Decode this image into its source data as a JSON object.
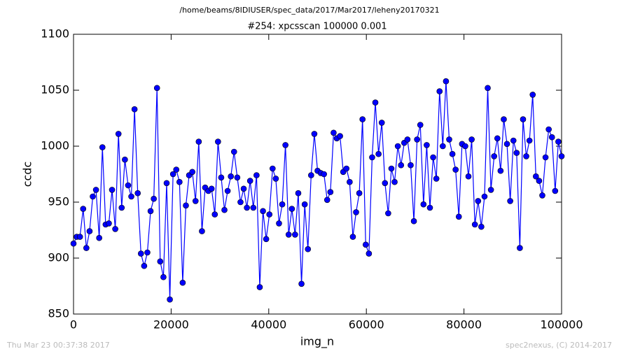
{
  "chart_data": {
    "type": "line",
    "suptitle": "/home/beams/8IDIUSER/spec_data/2017/Mar2017/leheny20170321",
    "title": "#254: xpcsscan 100000 0.001",
    "x_label": "img_n",
    "y_label": "ccdc",
    "footer_left": "Thu Mar 23 00:37:38 2017",
    "footer_right": "spec2nexus, (C) 2014-2017",
    "xlim": [
      0,
      100000
    ],
    "xticks": [
      0,
      20000,
      40000,
      60000,
      80000,
      100000
    ],
    "ylim": [
      850,
      1100
    ],
    "yticks": [
      850,
      900,
      950,
      1000,
      1050,
      1100
    ],
    "grid": false,
    "x": [
      0,
      658,
      1316,
      1974,
      2632,
      3289,
      3947,
      4605,
      5263,
      5921,
      6579,
      7237,
      7895,
      8553,
      9211,
      9868,
      10526,
      11184,
      11842,
      12500,
      13158,
      13816,
      14474,
      15132,
      15789,
      16447,
      17105,
      17763,
      18421,
      19079,
      19737,
      20395,
      21053,
      21711,
      22368,
      23026,
      23684,
      24342,
      25000,
      25658,
      26316,
      26974,
      27632,
      28289,
      28947,
      29605,
      30263,
      30921,
      31579,
      32237,
      32895,
      33553,
      34211,
      34868,
      35526,
      36184,
      36842,
      37500,
      38158,
      38816,
      39474,
      40132,
      40789,
      41447,
      42105,
      42763,
      43421,
      44079,
      44737,
      45395,
      46053,
      46711,
      47368,
      48026,
      48684,
      49342,
      50000,
      50658,
      51316,
      51974,
      52632,
      53289,
      53947,
      54605,
      55263,
      55921,
      56579,
      57237,
      57895,
      58553,
      59211,
      59868,
      60526,
      61184,
      61842,
      62500,
      63158,
      63816,
      64474,
      65132,
      65789,
      66447,
      67105,
      67763,
      68421,
      69079,
      69737,
      70395,
      71053,
      71711,
      72368,
      73026,
      73684,
      74342,
      75000,
      75658,
      76316,
      76974,
      77632,
      78289,
      78947,
      79605,
      80263,
      80921,
      81579,
      82237,
      82895,
      83553,
      84211,
      84868,
      85526,
      86184,
      86842,
      87500,
      88158,
      88816,
      89474,
      90132,
      90789,
      91447,
      92105,
      92763,
      93421,
      94079,
      94737,
      95395,
      96053,
      96711,
      97368,
      98026,
      98684,
      99342,
      100000
    ],
    "series": [
      {
        "color": "#0000ff",
        "values": [
          913,
          919,
          919,
          944,
          909,
          924,
          955,
          961,
          918,
          999,
          930,
          931,
          961,
          926,
          1011,
          945,
          988,
          965,
          955,
          1033,
          958,
          904,
          893,
          905,
          942,
          953,
          1052,
          897,
          883,
          967,
          863,
          975,
          979,
          968,
          878,
          947,
          974,
          977,
          951,
          1004,
          924,
          963,
          960,
          962,
          939,
          1004,
          972,
          943,
          960,
          973,
          995,
          972,
          950,
          962,
          945,
          969,
          945,
          974,
          874,
          942,
          917,
          939,
          980,
          971,
          931,
          948,
          1001,
          921,
          944,
          921,
          958,
          877,
          948,
          908,
          974,
          1011,
          978,
          976,
          975,
          952,
          959,
          1012,
          1007,
          1009,
          977,
          980,
          968,
          919,
          941,
          958,
          1024,
          912,
          904,
          990,
          1039,
          993,
          1021,
          967,
          940,
          980,
          968,
          1000,
          983,
          1003,
          1006,
          983,
          933,
          1006,
          1019,
          948,
          1001,
          945,
          990,
          971,
          1049,
          1000,
          1058,
          1006,
          993,
          979,
          937,
          1002,
          1000,
          973,
          1006,
          930,
          951,
          928,
          955,
          1052,
          961,
          991,
          1007,
          978,
          1024,
          1002,
          951,
          1005,
          994,
          909,
          1024,
          991,
          1005,
          1046,
          973,
          969,
          956,
          990,
          1015,
          1008,
          960,
          1004,
          991
        ]
      }
    ]
  }
}
